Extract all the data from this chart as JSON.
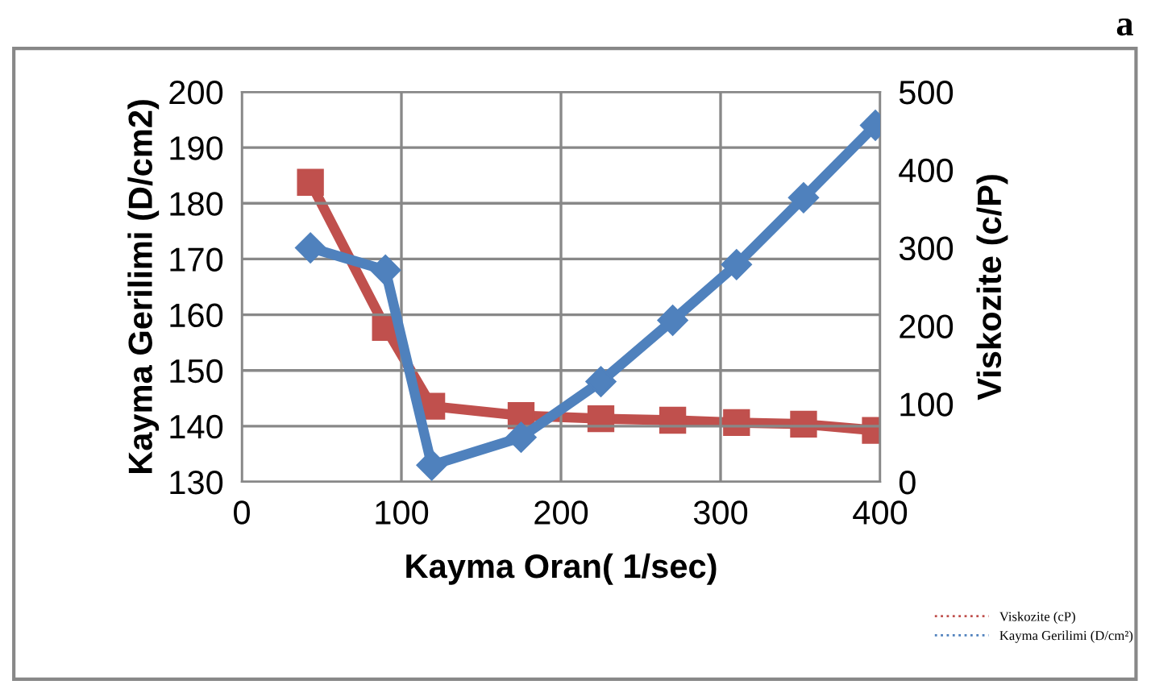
{
  "chart_data": {
    "type": "line",
    "xlabel": "Kayma Oran( 1/sec)",
    "ylabel": "Kayma Gerilimi (D/cm2)",
    "y2label": "Viskozite (c/P)",
    "x": [
      43,
      90,
      119,
      175,
      225,
      270,
      310,
      352,
      397
    ],
    "series": [
      {
        "name": "Kayma Gerilimi (D/cm²)",
        "color": "#4f81bd",
        "marker": "diamond",
        "values": [
          172,
          168,
          133,
          138,
          148,
          159,
          169,
          181,
          194
        ]
      },
      {
        "name": "Viskozite (cP)",
        "color": "#c0504d",
        "marker": "square",
        "axis": "y2",
        "values": [
          384,
          198,
          97,
          85,
          81,
          79,
          76,
          74,
          66
        ]
      }
    ],
    "xlim": [
      0,
      400
    ],
    "xticks": [
      0,
      100,
      200,
      300,
      400
    ],
    "ylim": [
      130,
      200
    ],
    "yticks": [
      130,
      140,
      150,
      160,
      170,
      180,
      190,
      200
    ],
    "y2lim": [
      0,
      500
    ],
    "y2ticks": [
      0,
      100,
      200,
      300,
      400,
      500
    ],
    "grid": true,
    "legend": "bottom right",
    "line_style": "solid",
    "annotations": [
      "a"
    ]
  }
}
